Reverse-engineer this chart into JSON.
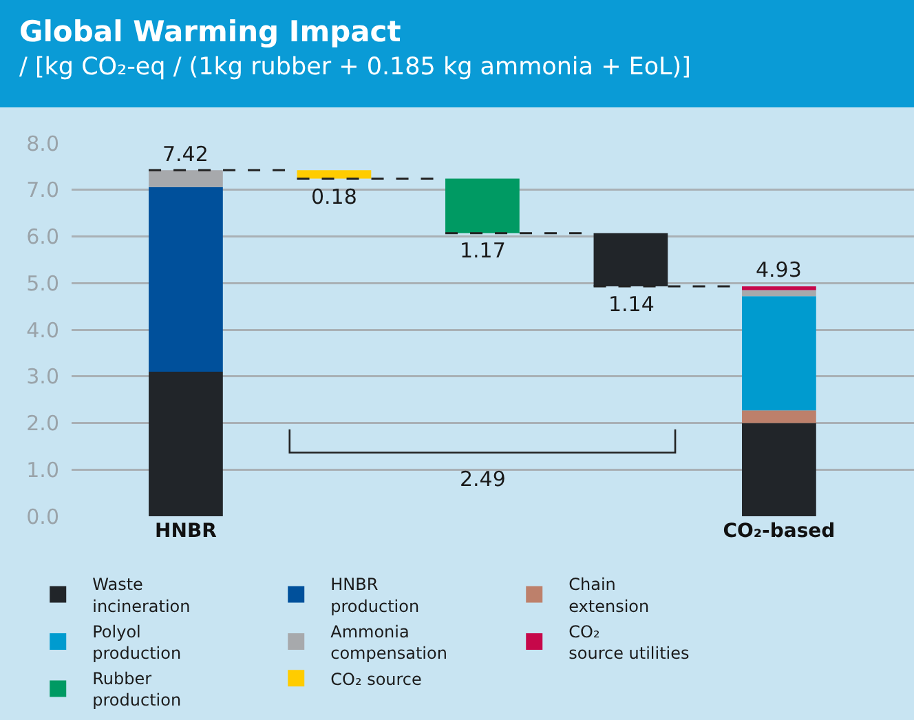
{
  "chart_data": {
    "type": "bar",
    "title": "Global Warming Impact",
    "subtitle": "/ [kg CO₂-eq / (1kg rubber + 0.185 kg ammonia + EoL)]",
    "categories": [
      "HNBR",
      null,
      null,
      null,
      "CO₂-based"
    ],
    "stacked": true,
    "series": [
      {
        "name": "Waste incineration",
        "color": "#212529",
        "values": [
          3.1,
          null,
          null,
          1.14,
          2.0
        ],
        "base": [
          null,
          null,
          null,
          4.93,
          null
        ],
        "value_labels": [
          null,
          null,
          null,
          "1.14",
          null
        ]
      },
      {
        "name": "HNBR production",
        "color": "#00509b",
        "values": [
          3.96,
          null,
          null,
          null,
          null
        ]
      },
      {
        "name": "Chain extension",
        "color": "#bd806b",
        "values": [
          null,
          null,
          null,
          null,
          0.27
        ]
      },
      {
        "name": "Polyol production",
        "color": "#009bcf",
        "values": [
          null,
          null,
          null,
          null,
          2.45
        ]
      },
      {
        "name": "Ammonia compensation",
        "color": "#a7a9ac",
        "values": [
          0.36,
          null,
          null,
          null,
          0.13
        ]
      },
      {
        "name": "CO₂ source utilities",
        "color": "#c6084a",
        "values": [
          null,
          null,
          null,
          null,
          0.08
        ]
      },
      {
        "name": "Rubber production",
        "color": "#009a63",
        "values": [
          null,
          null,
          1.17,
          null,
          null
        ],
        "base": [
          null,
          null,
          6.07,
          null,
          null
        ],
        "value_labels": [
          null,
          null,
          "1.17",
          null,
          null
        ]
      },
      {
        "name": "CO₂ source",
        "color": "#ffcc00",
        "values": [
          null,
          0.18,
          null,
          null,
          null
        ],
        "base": [
          null,
          7.24,
          null,
          null,
          null
        ],
        "value_labels": [
          null,
          "0.18",
          null,
          null,
          null
        ]
      }
    ],
    "totals": [
      "7.42",
      null,
      null,
      null,
      "4.93"
    ],
    "annotations": [
      "2.49"
    ],
    "ylim": [
      0,
      8
    ],
    "yticks": [
      {
        "value": 0,
        "label": "0.0"
      },
      {
        "value": 1,
        "label": "1.0"
      },
      {
        "value": 2,
        "label": "2.0"
      },
      {
        "value": 3,
        "label": "3.0"
      },
      {
        "value": 4,
        "label": "4.0"
      },
      {
        "value": 5,
        "label": "5.0"
      },
      {
        "value": 6,
        "label": "6.0"
      },
      {
        "value": 7,
        "label": "7.0"
      },
      {
        "value": 8,
        "label": "8.0"
      }
    ],
    "grid": "y",
    "legend": "bottom"
  }
}
